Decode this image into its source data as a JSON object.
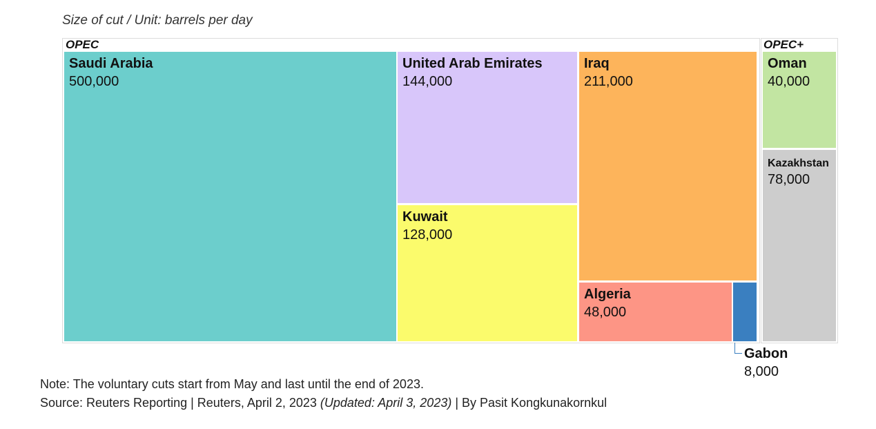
{
  "subtitle": "Size of cut / Unit: barrels per day",
  "chart_data": {
    "type": "treemap",
    "groups": [
      {
        "name": "OPEC",
        "items": [
          {
            "name": "Saudi Arabia",
            "label": "500,000",
            "value": 500000,
            "color": "#6ccecc"
          },
          {
            "name": "United Arab Emirates",
            "label": "144,000",
            "value": 144000,
            "color": "#d8c6fa"
          },
          {
            "name": "Kuwait",
            "label": "128,000",
            "value": 128000,
            "color": "#fbfb6c"
          },
          {
            "name": "Iraq",
            "label": "211,000",
            "value": 211000,
            "color": "#fdb45b"
          },
          {
            "name": "Algeria",
            "label": "48,000",
            "value": 48000,
            "color": "#fd9585"
          },
          {
            "name": "Gabon",
            "label": "8,000",
            "value": 8000,
            "color": "#3a7fc0"
          }
        ]
      },
      {
        "name": "OPEC+",
        "items": [
          {
            "name": "Oman",
            "label": "40,000",
            "value": 40000,
            "color": "#c2e5a2"
          },
          {
            "name": "Kazakhstan",
            "label": "78,000",
            "value": 78000,
            "color": "#cdcdcd"
          }
        ]
      }
    ]
  },
  "footer": {
    "note": "Note: The voluntary cuts start from May and last until the end of 2023.",
    "source_main": "Source: Reuters Reporting | Reuters, April 2, 2023 ",
    "source_updated": "(Updated: April 3, 2023)",
    "source_byline": " | By Pasit Kongkunakornkul"
  }
}
